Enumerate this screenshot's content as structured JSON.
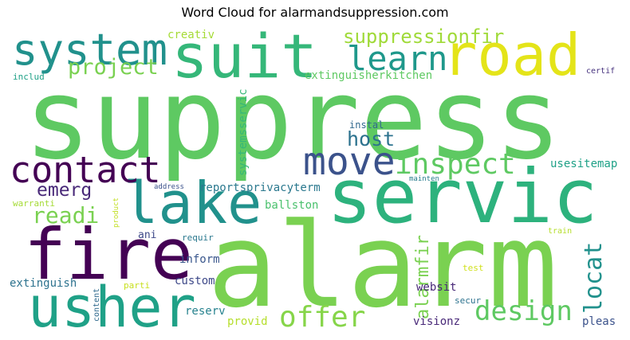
{
  "title": "Word Cloud for alarmandsuppression.com",
  "words": [
    {
      "text": "suppress",
      "color": "#5ec962"
    },
    {
      "text": "alarm",
      "color": "#7ad151"
    },
    {
      "text": "servic",
      "color": "#2db27d"
    },
    {
      "text": "fire",
      "color": "#440154"
    },
    {
      "text": "lake",
      "color": "#21918c"
    },
    {
      "text": "usher",
      "color": "#1fa187"
    },
    {
      "text": "suit",
      "color": "#35b779"
    },
    {
      "text": "road",
      "color": "#e4e419"
    },
    {
      "text": "system",
      "color": "#21918c"
    },
    {
      "text": "contact",
      "color": "#440154"
    },
    {
      "text": "move",
      "color": "#3b528b"
    },
    {
      "text": "learn",
      "color": "#1f988b"
    },
    {
      "text": "inspect",
      "color": "#5ec962"
    },
    {
      "text": "design",
      "color": "#5ec962"
    },
    {
      "text": "offer",
      "color": "#86d549"
    },
    {
      "text": "project",
      "color": "#7ad151"
    },
    {
      "text": "suppressionfir",
      "color": "#a0da39"
    },
    {
      "text": "host",
      "color": "#2c728e"
    },
    {
      "text": "emerg",
      "color": "#482878"
    },
    {
      "text": "readi",
      "color": "#7ad151"
    },
    {
      "text": "locat",
      "color": "#21918c"
    },
    {
      "text": "alarmfir",
      "color": "#7ad151"
    },
    {
      "text": "creativ",
      "color": "#a5db36"
    },
    {
      "text": "extinguisherkitchen",
      "color": "#5ec962"
    },
    {
      "text": "includ",
      "color": "#1fa187"
    },
    {
      "text": "certif",
      "color": "#46327e"
    },
    {
      "text": "instal",
      "color": "#31688e"
    },
    {
      "text": "systemsservic",
      "color": "#35b779"
    },
    {
      "text": "usesitemap",
      "color": "#1fa187"
    },
    {
      "text": "reportsprivacyterm",
      "color": "#2a788e"
    },
    {
      "text": "address",
      "color": "#3b528b"
    },
    {
      "text": "mainten",
      "color": "#287d8e"
    },
    {
      "text": "warranti",
      "color": "#a5db36"
    },
    {
      "text": "product",
      "color": "#c2df23"
    },
    {
      "text": "ballston",
      "color": "#4ac16d"
    },
    {
      "text": "ani",
      "color": "#3e4989"
    },
    {
      "text": "requir",
      "color": "#2a788e"
    },
    {
      "text": "train",
      "color": "#b5de2b"
    },
    {
      "text": "inform",
      "color": "#39568c"
    },
    {
      "text": "test",
      "color": "#d0e11c"
    },
    {
      "text": "websit",
      "color": "#482878"
    },
    {
      "text": "extinguish",
      "color": "#2c728e"
    },
    {
      "text": "parti",
      "color": "#c8e020"
    },
    {
      "text": "custom",
      "color": "#3e4989"
    },
    {
      "text": "content",
      "color": "#306a8e"
    },
    {
      "text": "reserv",
      "color": "#26828e"
    },
    {
      "text": "secur",
      "color": "#2c728e"
    },
    {
      "text": "pleas",
      "color": "#3b528b"
    },
    {
      "text": "provid",
      "color": "#b5de2b"
    },
    {
      "text": "visionz",
      "color": "#482878"
    }
  ]
}
